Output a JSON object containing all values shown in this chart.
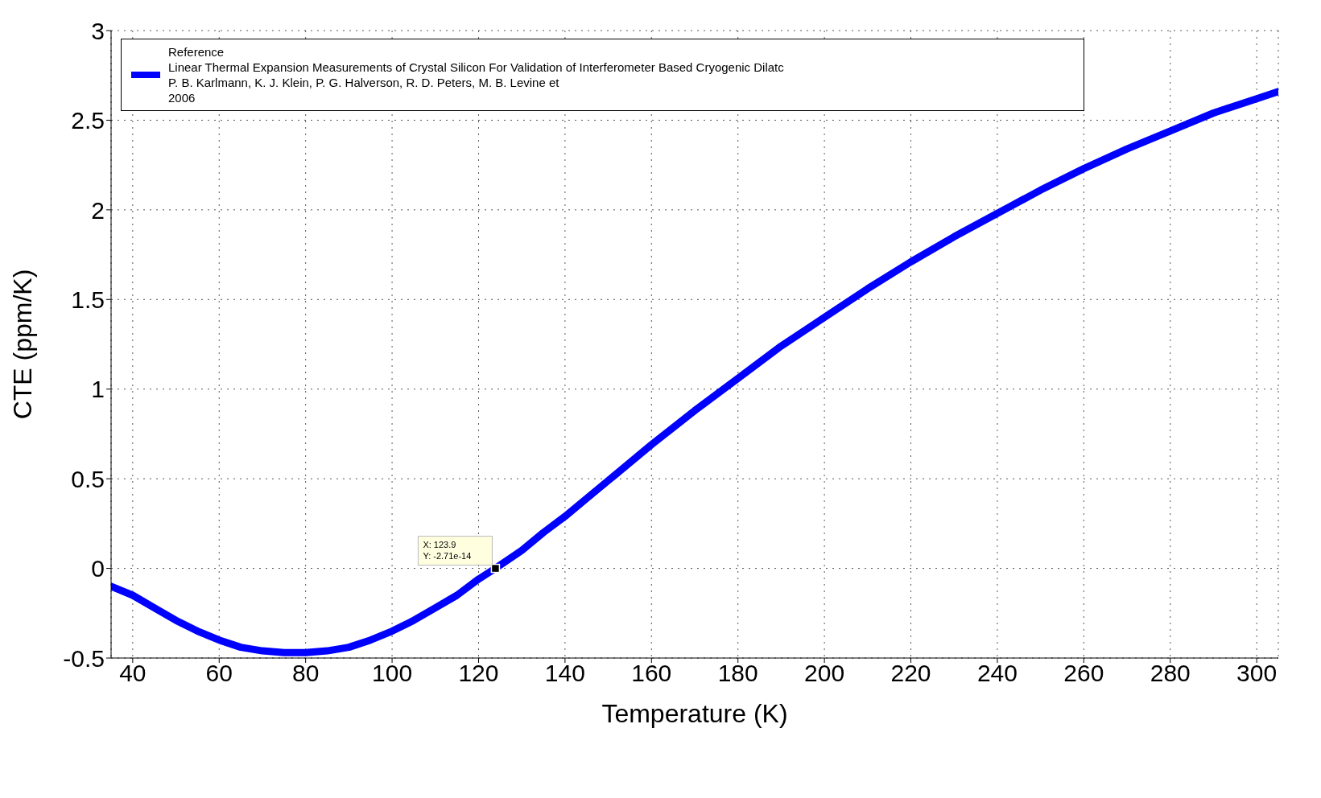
{
  "chart_data": {
    "type": "line",
    "xlabel": "Temperature (K)",
    "ylabel": "CTE (ppm/K)",
    "xlim": [
      35,
      305
    ],
    "xticks": [
      40,
      60,
      80,
      100,
      120,
      140,
      160,
      180,
      200,
      220,
      240,
      260,
      280,
      300
    ],
    "ylim": [
      -0.5,
      3
    ],
    "yticks": [
      -0.5,
      0,
      0.5,
      1,
      1.5,
      2,
      2.5,
      3
    ],
    "grid": true,
    "legend": "top",
    "marker": "none",
    "line_style": "solid",
    "x": [
      35,
      40,
      45,
      50,
      55,
      60,
      65,
      70,
      75,
      80,
      85,
      90,
      95,
      100,
      105,
      110,
      115,
      120,
      123.9,
      130,
      135,
      140,
      145,
      150,
      160,
      170,
      180,
      190,
      200,
      210,
      220,
      230,
      240,
      250,
      260,
      270,
      280,
      290,
      300,
      305
    ],
    "series": [
      {
        "name": "Reference\nLinear Thermal Expansion Measurements of Crystal Silicon For Validation of Interferometer Based Cryogenic Dilatc\nP. B. Karlmann, K. J. Klein, P. G. Halverson, R. D. Peters, M. B. Levine et\n2006",
        "color": "#0000ff",
        "values": [
          -0.1,
          -0.15,
          -0.22,
          -0.29,
          -0.35,
          -0.4,
          -0.44,
          -0.46,
          -0.47,
          -0.47,
          -0.46,
          -0.44,
          -0.4,
          -0.35,
          -0.29,
          -0.22,
          -0.15,
          -0.06,
          0,
          0.1,
          0.2,
          0.29,
          0.39,
          0.49,
          0.69,
          0.88,
          1.06,
          1.24,
          1.4,
          1.56,
          1.71,
          1.85,
          1.98,
          2.11,
          2.23,
          2.34,
          2.44,
          2.54,
          2.62,
          2.66
        ]
      }
    ],
    "annotations": [
      {
        "text": "X: 123.9\nY: -2.71e-14",
        "x": 123.9,
        "y": 0
      }
    ]
  }
}
